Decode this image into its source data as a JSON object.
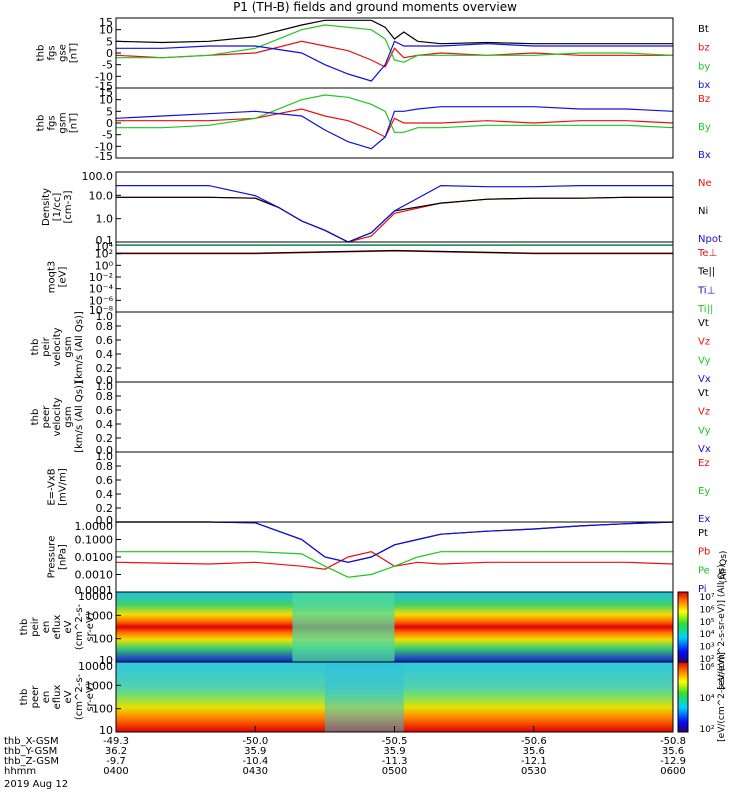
{
  "title": "P1 (TH-B) fields and ground moments overview",
  "date_label": "2019 Aug 12",
  "panels": [
    {
      "id": "p1",
      "ylabel": [
        "thb",
        "fgs",
        "gse",
        "[nT]"
      ],
      "ticks": [
        "15",
        "10",
        "5",
        "0",
        "-5",
        "-10",
        "-15"
      ],
      "legend": [
        {
          "t": "Bt",
          "c": "#000000"
        },
        {
          "t": "bz",
          "c": "#e8110e"
        },
        {
          "t": "by",
          "c": "#1ec71e"
        },
        {
          "t": "bx",
          "c": "#1010e0"
        }
      ]
    },
    {
      "id": "p2",
      "ylabel": [
        "thb",
        "fgs",
        "gsm",
        "[nT]"
      ],
      "ticks": [
        "15",
        "10",
        "5",
        "0",
        "-5",
        "-10",
        "-15"
      ],
      "legend": [
        {
          "t": "Bz",
          "c": "#e8110e"
        },
        {
          "t": "By",
          "c": "#1ec71e"
        },
        {
          "t": "Bx",
          "c": "#1010e0"
        }
      ]
    },
    {
      "id": "p3",
      "ylabel": [
        "Density",
        "[1/cc]",
        "[cm-3]"
      ],
      "ticks": [
        "100.0",
        "10.0",
        "1.0",
        "0.1"
      ],
      "legend": [
        {
          "t": "Ne",
          "c": "#e8110e"
        },
        {
          "t": "Ni",
          "c": "#000000"
        },
        {
          "t": "Npot",
          "c": "#1010e0"
        }
      ]
    },
    {
      "id": "p4",
      "ylabel": [
        "moqt3",
        "[eV]"
      ],
      "ticks": [
        "10⁴",
        "10²",
        "10⁰",
        "10⁻²",
        "10⁻⁴",
        "10⁻⁶",
        "10⁻⁸"
      ],
      "legend": [
        {
          "t": "Te⊥",
          "c": "#e8110e"
        },
        {
          "t": "Te||",
          "c": "#000000"
        },
        {
          "t": "Ti⊥",
          "c": "#1010e0"
        },
        {
          "t": "Ti||",
          "c": "#1ec71e"
        }
      ]
    },
    {
      "id": "p5",
      "ylabel": [
        "thb",
        "peir",
        "velocity",
        "gsm",
        "[km/s (All Qs)]"
      ],
      "ticks": [
        "1.0",
        "0.8",
        "0.6",
        "0.4",
        "0.2",
        "0.0"
      ],
      "legend": [
        {
          "t": "Vt",
          "c": "#000000"
        },
        {
          "t": "Vz",
          "c": "#e8110e"
        },
        {
          "t": "Vy",
          "c": "#1ec71e"
        },
        {
          "t": "Vx",
          "c": "#1010e0"
        }
      ]
    },
    {
      "id": "p6",
      "ylabel": [
        "thb",
        "peer",
        "velocity",
        "gsm",
        "[km/s (All Qs)]"
      ],
      "ticks": [
        "1.0",
        "0.8",
        "0.6",
        "0.4",
        "0.2",
        "0.0"
      ],
      "legend": [
        {
          "t": "Vt",
          "c": "#000000"
        },
        {
          "t": "Vz",
          "c": "#e8110e"
        },
        {
          "t": "Vy",
          "c": "#1ec71e"
        },
        {
          "t": "Vx",
          "c": "#1010e0"
        }
      ]
    },
    {
      "id": "p7",
      "ylabel": [
        "E=-VxB",
        "[mV/m]"
      ],
      "ticks": [
        "1.0",
        "0.8",
        "0.6",
        "0.4",
        "0.2",
        "0.0"
      ],
      "legend": [
        {
          "t": "Ez",
          "c": "#e8110e"
        },
        {
          "t": "Ey",
          "c": "#1ec71e"
        },
        {
          "t": "Ex",
          "c": "#1010e0"
        }
      ]
    },
    {
      "id": "p8",
      "ylabel": [
        "Pressure",
        "[nPa]"
      ],
      "ticks": [
        "1.0000",
        "0.1000",
        "0.0100",
        "0.0010",
        "0.0001"
      ],
      "legend": [
        {
          "t": "Pt",
          "c": "#000000"
        },
        {
          "t": "Pb",
          "c": "#e8110e"
        },
        {
          "t": "Pe",
          "c": "#1ec71e"
        },
        {
          "t": "Pi",
          "c": "#1010e0"
        }
      ],
      "side_note": "(All Qs)"
    },
    {
      "id": "p9",
      "ylabel": [
        "thb",
        "peir",
        "en",
        "eflux",
        "eV",
        "(cm^2-s-",
        "sr-eV)"
      ],
      "ticks": [
        "10000",
        "1000",
        "100",
        "10"
      ]
    },
    {
      "id": "p10",
      "ylabel": [
        "thb",
        "peer",
        "en",
        "eflux",
        "eV",
        "(cm^2-s-",
        "sr-eV)"
      ],
      "ticks": [
        "10000",
        "1000",
        "100",
        "10"
      ]
    }
  ],
  "colorbar1": {
    "ticks": [
      "10⁷",
      "10⁶",
      "10⁵",
      "10⁴",
      "10³",
      "10²"
    ],
    "label": "[eV/(cm^2-s-sr-eV)] (All Qs)"
  },
  "colorbar2": {
    "ticks": [
      "10⁶",
      "10⁴",
      "10²"
    ],
    "label": "[eV/(cm^2-s-sr-eV)]"
  },
  "x_rows": [
    {
      "label": "thb_X-GSM",
      "vals": [
        "-49.3",
        "-50.0",
        "-50.5",
        "-50.6",
        "-50.8"
      ]
    },
    {
      "label": "thb_Y-GSM",
      "vals": [
        "36.2",
        "35.9",
        "35.9",
        "35.6",
        "35.6"
      ]
    },
    {
      "label": "thb_Z-GSM",
      "vals": [
        "-9.7",
        "-10.4",
        "-11.3",
        "-12.1",
        "-12.9"
      ]
    },
    {
      "label": "hhmm",
      "vals": [
        "0400",
        "0430",
        "0500",
        "0530",
        "0600"
      ]
    }
  ],
  "chart_data": [
    {
      "type": "line",
      "panel": "thb fgs gse",
      "xlim": [
        "04:00",
        "06:00"
      ],
      "ylim": [
        -15,
        15
      ],
      "x_minutes": [
        0,
        10,
        20,
        30,
        40,
        45,
        50,
        55,
        58,
        60,
        62,
        65,
        70,
        80,
        90,
        100,
        110,
        120
      ],
      "series": [
        {
          "name": "Bt",
          "color": "#000000",
          "values": [
            5,
            4.5,
            5,
            7,
            12,
            14,
            14,
            14,
            11,
            6,
            9,
            5,
            4,
            4.5,
            4,
            4,
            4,
            4
          ]
        },
        {
          "name": "bz",
          "color": "#e8110e",
          "values": [
            -1,
            -2,
            -1,
            0,
            5,
            3,
            1,
            -3,
            -6,
            2,
            -2,
            -1,
            0,
            -1,
            0,
            -1,
            -1,
            -1
          ]
        },
        {
          "name": "by",
          "color": "#1ec71e",
          "values": [
            -2,
            -2,
            -1,
            2,
            10,
            12,
            11,
            10,
            6,
            -3,
            -4,
            -1,
            -1,
            -1,
            -1,
            0,
            0,
            -1
          ]
        },
        {
          "name": "bx",
          "color": "#1010e0",
          "values": [
            2,
            2,
            3,
            3,
            0,
            -5,
            -9,
            -12,
            -5,
            5,
            3,
            3,
            3,
            4,
            3,
            3,
            3,
            3
          ]
        }
      ]
    },
    {
      "type": "line",
      "panel": "thb fgs gsm",
      "xlim": [
        "04:00",
        "06:00"
      ],
      "ylim": [
        -15,
        15
      ],
      "x_minutes": [
        0,
        10,
        20,
        30,
        40,
        45,
        50,
        55,
        58,
        60,
        62,
        65,
        70,
        80,
        90,
        100,
        110,
        120
      ],
      "series": [
        {
          "name": "Bz",
          "color": "#e8110e",
          "values": [
            1,
            1,
            1,
            2,
            6,
            3,
            1,
            -3,
            -6,
            2,
            0,
            0,
            0,
            1,
            0,
            1,
            1,
            0
          ]
        },
        {
          "name": "By",
          "color": "#1ec71e",
          "values": [
            -2,
            -2,
            -1,
            2,
            10,
            12,
            11,
            8,
            5,
            -4,
            -4,
            -2,
            -2,
            -1,
            -1,
            -1,
            -1,
            -2
          ]
        },
        {
          "name": "Bx",
          "color": "#1010e0",
          "values": [
            2,
            3,
            4,
            5,
            3,
            -3,
            -8,
            -11,
            -6,
            5,
            5,
            6,
            7,
            7,
            7,
            6,
            6,
            5
          ]
        }
      ]
    },
    {
      "type": "line",
      "panel": "Density",
      "yscale": "log",
      "ylim": [
        0.05,
        200
      ],
      "x_minutes": [
        0,
        10,
        20,
        30,
        35,
        40,
        45,
        50,
        55,
        60,
        70,
        80,
        90,
        100,
        110,
        120
      ],
      "series": [
        {
          "name": "Ne",
          "color": "#e8110e",
          "values": [
            10,
            10,
            10,
            9,
            3,
            0.6,
            0.2,
            0.05,
            0.1,
            1.5,
            5,
            8,
            9,
            9,
            10,
            10
          ]
        },
        {
          "name": "Ni",
          "color": "#000000",
          "values": [
            10,
            10,
            10,
            9,
            3,
            0.6,
            0.2,
            0.05,
            0.15,
            2,
            5,
            8,
            9,
            9,
            10,
            10
          ]
        },
        {
          "name": "Npot",
          "color": "#1010e0",
          "values": [
            40,
            40,
            40,
            12,
            3,
            0.6,
            0.2,
            0.05,
            0.15,
            2,
            40,
            35,
            35,
            40,
            40,
            40
          ]
        }
      ]
    },
    {
      "type": "line",
      "panel": "moqt3",
      "yscale": "log",
      "ylim": [
        1e-08,
        10000.0
      ],
      "x_minutes": [
        0,
        30,
        60,
        90,
        120
      ],
      "series": [
        {
          "name": "Te⊥",
          "color": "#e8110e",
          "values": [
            100,
            100,
            300,
            100,
            100
          ]
        },
        {
          "name": "Te||",
          "color": "#000000",
          "values": [
            120,
            120,
            350,
            120,
            120
          ]
        },
        {
          "name": "Ti⊥",
          "color": "#1010e0",
          "values": [
            3000,
            3000,
            3000,
            3000,
            3000
          ]
        },
        {
          "name": "Ti||",
          "color": "#1ec71e",
          "values": [
            3500,
            3500,
            3500,
            3500,
            3500
          ]
        }
      ]
    },
    {
      "type": "line",
      "panel": "Pressure",
      "yscale": "log",
      "ylim": [
        0.0001,
        1
      ],
      "x_minutes": [
        0,
        20,
        30,
        40,
        45,
        50,
        55,
        60,
        65,
        70,
        80,
        90,
        100,
        110,
        120
      ],
      "series": [
        {
          "name": "Pt",
          "color": "#000000",
          "values": [
            1,
            1,
            0.9,
            0.1,
            0.01,
            0.005,
            0.01,
            0.05,
            0.1,
            0.2,
            0.3,
            0.4,
            0.6,
            0.8,
            1
          ]
        },
        {
          "name": "Pb",
          "color": "#e8110e",
          "values": [
            0.005,
            0.004,
            0.005,
            0.003,
            0.002,
            0.01,
            0.02,
            0.003,
            0.005,
            0.004,
            0.005,
            0.005,
            0.005,
            0.005,
            0.004
          ]
        },
        {
          "name": "Pe",
          "color": "#1ec71e",
          "values": [
            0.02,
            0.02,
            0.02,
            0.015,
            0.003,
            0.0007,
            0.001,
            0.003,
            0.01,
            0.02,
            0.02,
            0.02,
            0.02,
            0.02,
            0.02
          ]
        },
        {
          "name": "Pi",
          "color": "#1010e0",
          "values": [
            1,
            1,
            0.9,
            0.1,
            0.01,
            0.005,
            0.01,
            0.05,
            0.1,
            0.2,
            0.3,
            0.4,
            0.6,
            0.8,
            1
          ]
        }
      ]
    }
  ]
}
